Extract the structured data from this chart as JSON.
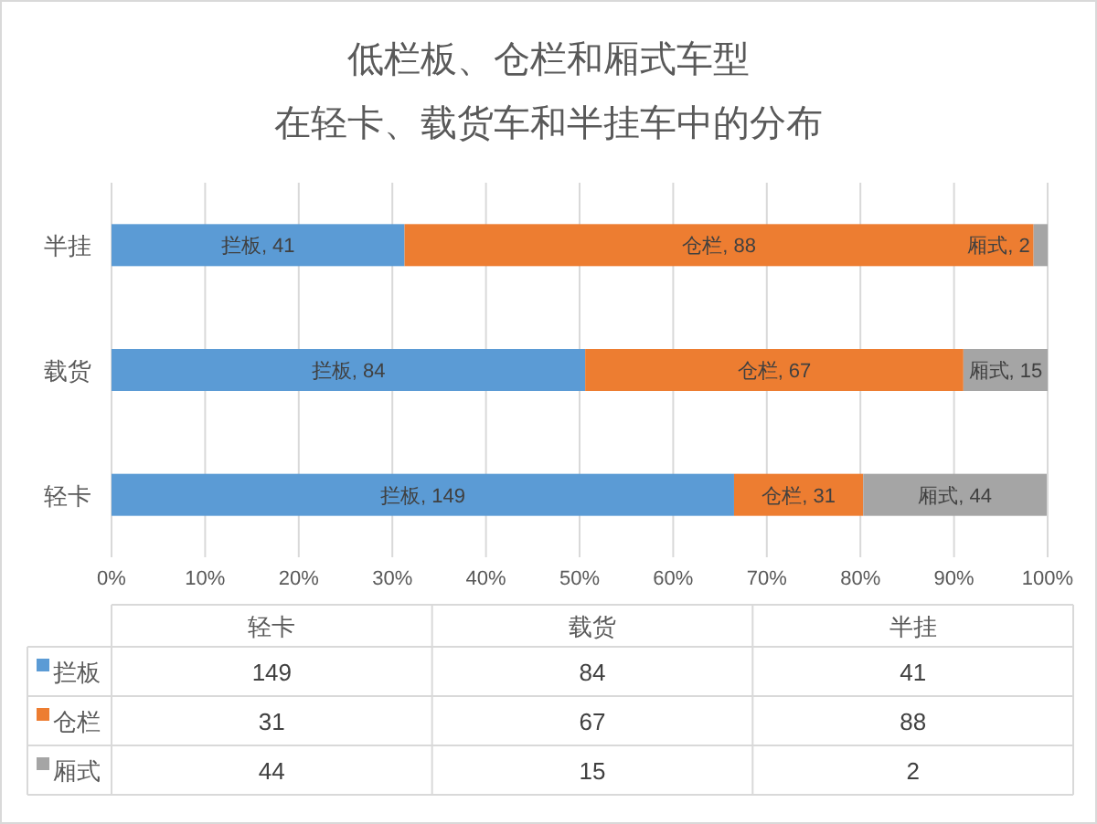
{
  "chart_data": {
    "type": "bar",
    "orientation": "horizontal",
    "stacked": true,
    "title": "低栏板、仓栏和厢式车型",
    "subtitle": "在轻卡、载货车和半挂车中的分布",
    "categories": [
      "半挂",
      "载货",
      "轻卡"
    ],
    "series": [
      {
        "name": "拦板",
        "color": "#5b9bd5",
        "values": [
          31.3,
          50.6,
          66.5
        ]
      },
      {
        "name": "仓栏",
        "color": "#ed7d31",
        "values": [
          67.2,
          40.4,
          13.8
        ]
      },
      {
        "name": "厢式",
        "color": "#a5a5a5",
        "values": [
          1.5,
          9.0,
          19.6
        ]
      }
    ],
    "xlim": [
      0,
      100
    ],
    "xticks": [
      {
        "value": 0,
        "label": "0%"
      },
      {
        "value": 10,
        "label": "10%"
      },
      {
        "value": 20,
        "label": "20%"
      },
      {
        "value": 30,
        "label": "30%"
      },
      {
        "value": 40,
        "label": "40%"
      },
      {
        "value": 50,
        "label": "50%"
      },
      {
        "value": 60,
        "label": "60%"
      },
      {
        "value": 70,
        "label": "70%"
      },
      {
        "value": 80,
        "label": "80%"
      },
      {
        "value": 90,
        "label": "90%"
      },
      {
        "value": 100,
        "label": "100%"
      }
    ],
    "annotations": [
      "拦板, 41",
      "仓栏, 88",
      "厢式, 2",
      "拦板, 84",
      "仓栏, 67",
      "厢式, 15",
      "拦板, 149",
      "仓栏, 31",
      "厢式, 44",
      "149",
      "84",
      "41",
      "31",
      "67",
      "88",
      "44",
      "15",
      "2"
    ],
    "grid": "x",
    "legend": "bottom"
  }
}
